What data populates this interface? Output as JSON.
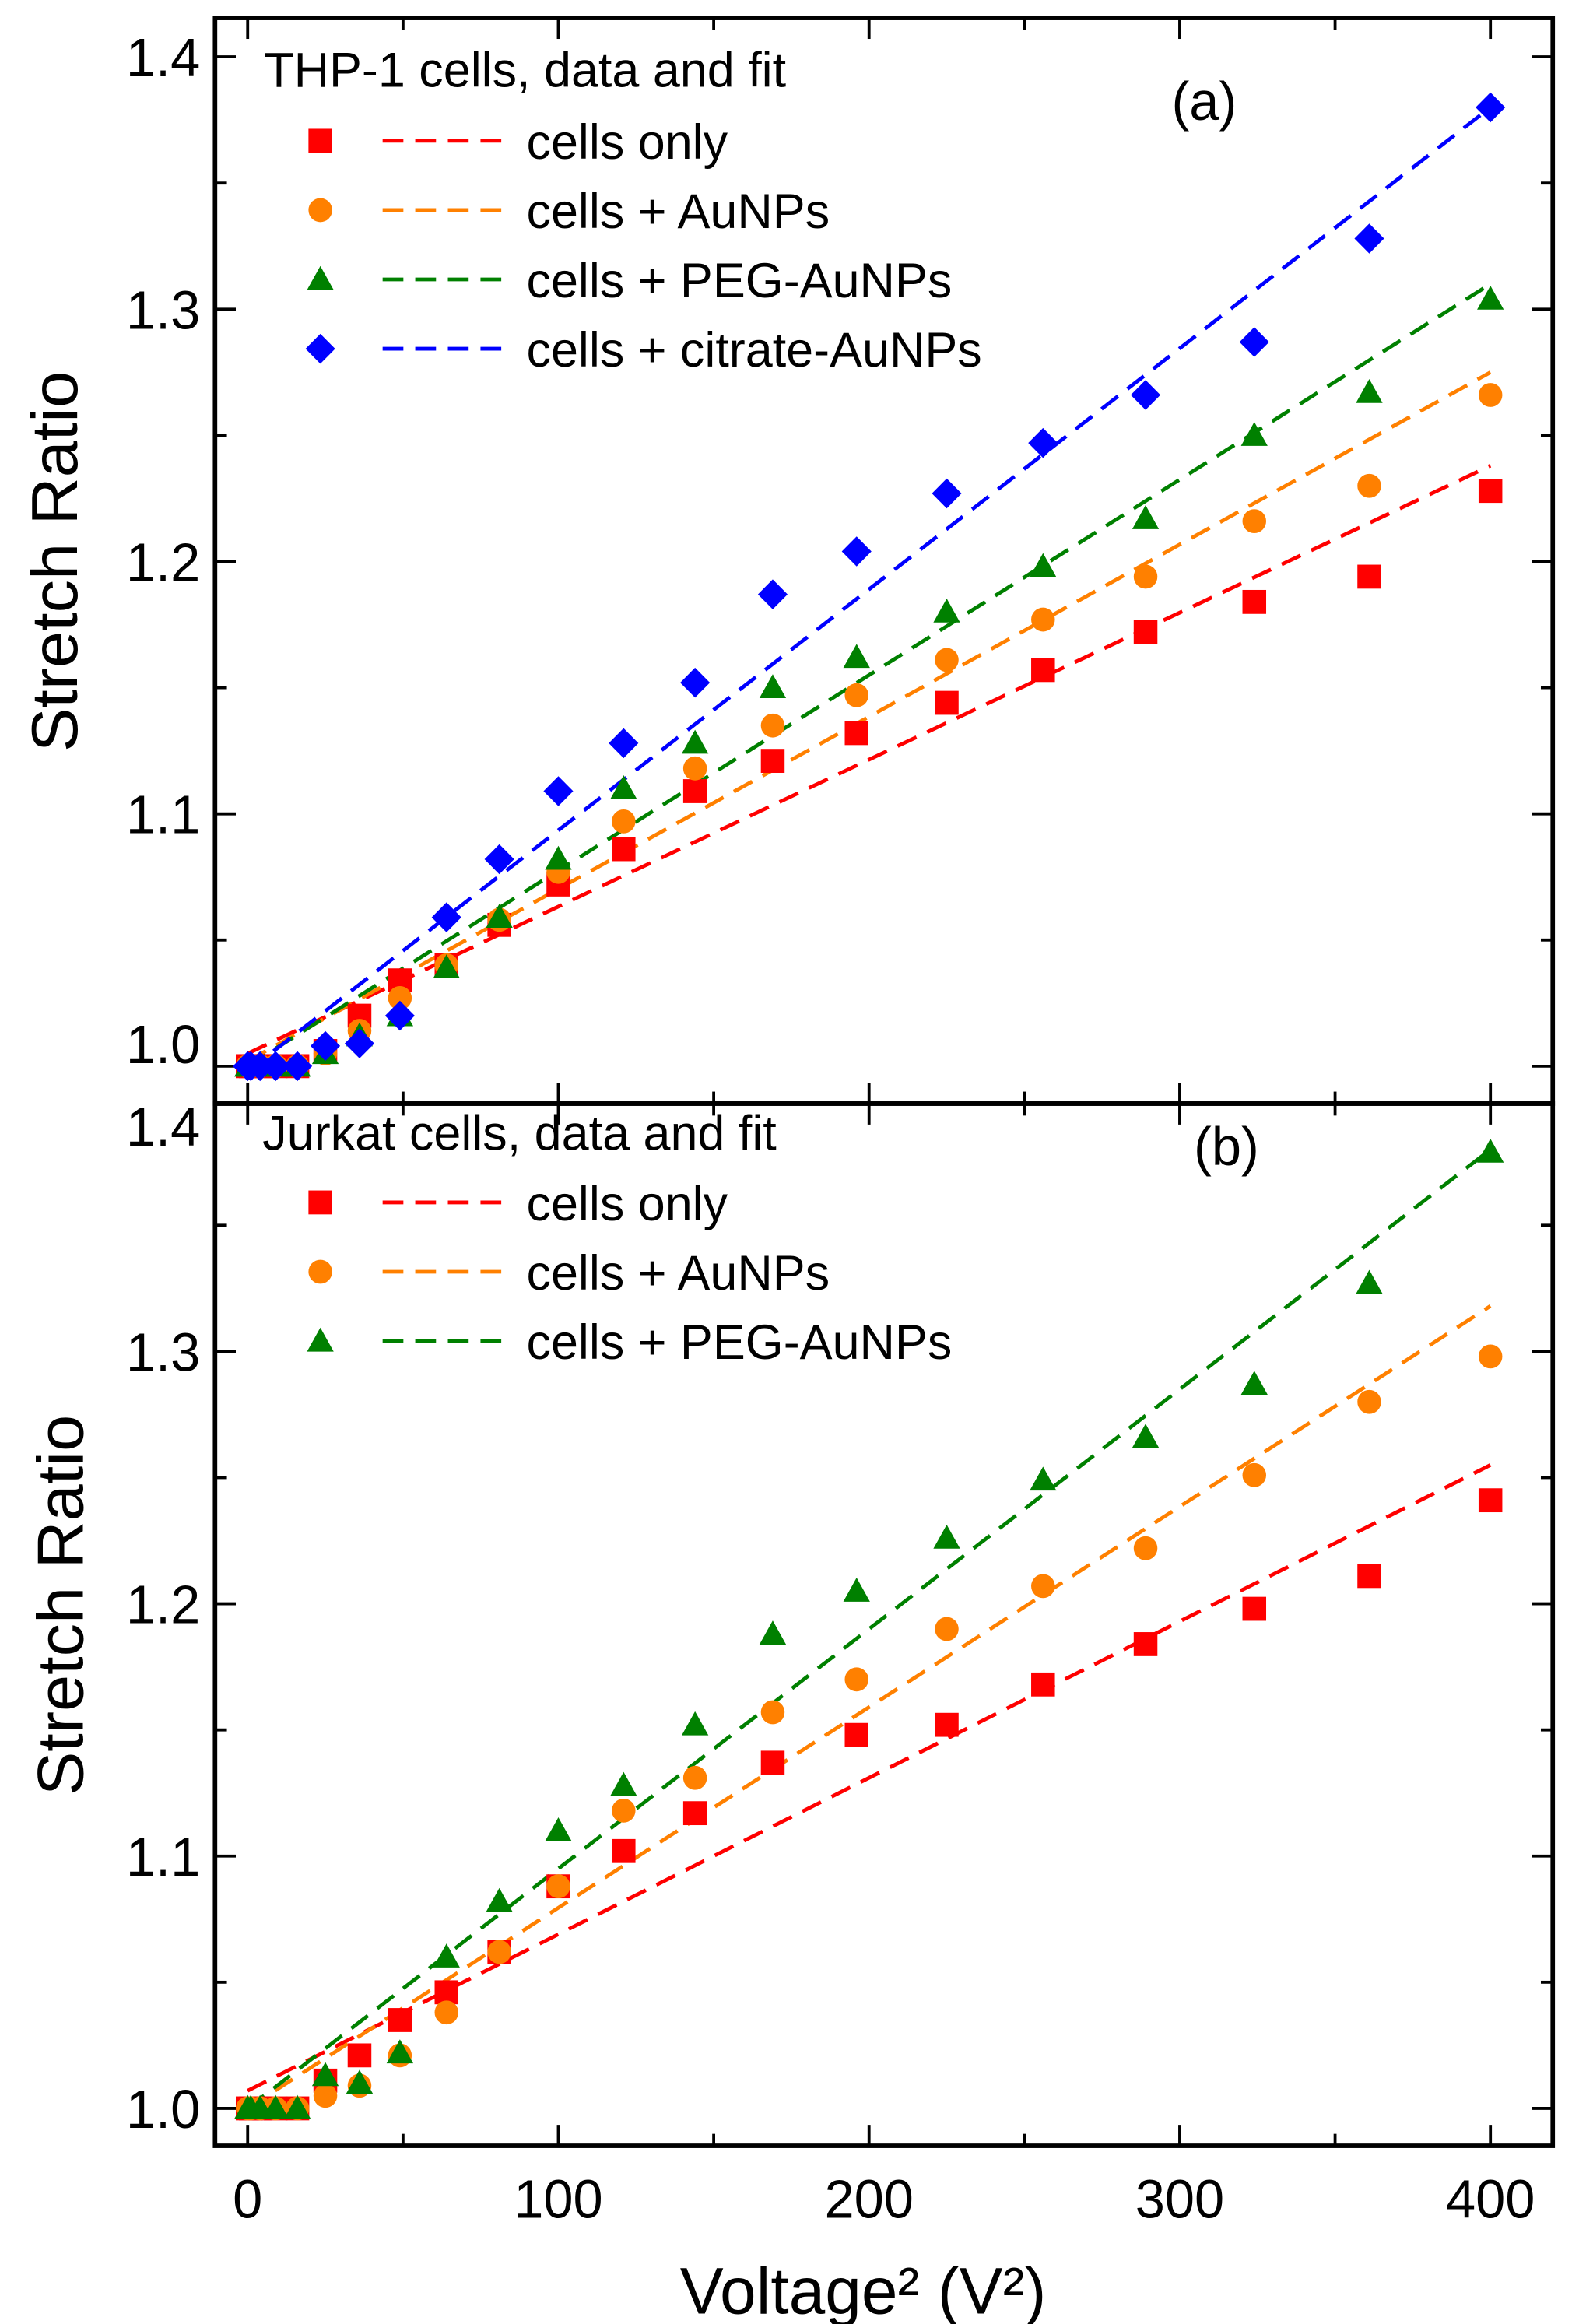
{
  "chart_data": [
    {
      "type": "scatter",
      "panel_label": "(a)",
      "legend_title": "THP-1 cells, data and fit",
      "xlabel": "Voltage² (V²)",
      "ylabel": "Stretch Ratio",
      "xlim": [
        -8,
        420
      ],
      "ylim": [
        0.985,
        1.415
      ],
      "xticks": [
        0,
        100,
        200,
        300,
        400
      ],
      "yticks": [
        "1.0",
        "1.1",
        "1.2",
        "1.3",
        "1.4"
      ],
      "x": [
        0,
        1,
        4,
        9,
        16,
        25,
        36,
        49,
        64,
        81,
        100,
        121,
        144,
        169,
        196,
        225,
        256,
        289,
        324,
        361,
        400
      ],
      "series": [
        {
          "name": "cells only",
          "color": "#ff0000",
          "marker": "square",
          "values": [
            1,
            1,
            1,
            1,
            1,
            1.006,
            1.02,
            1.034,
            1.04,
            1.056,
            1.072,
            1.086,
            1.109,
            1.121,
            1.132,
            1.144,
            1.157,
            1.172,
            1.184,
            1.194,
            1.228
          ],
          "fit": [
            1.005,
            1.238
          ]
        },
        {
          "name": "cells + AuNPs",
          "color": "#ff8000",
          "marker": "circle",
          "values": [
            1,
            1,
            1,
            1,
            1,
            1.005,
            1.014,
            1.027,
            1.04,
            1.058,
            1.077,
            1.097,
            1.118,
            1.135,
            1.147,
            1.161,
            1.177,
            1.194,
            1.216,
            1.23,
            1.266
          ],
          "fit": [
            1.002,
            1.275
          ]
        },
        {
          "name": "cells + PEG-AuNPs",
          "color": "#008000",
          "marker": "triangle",
          "values": [
            1,
            1,
            1,
            1,
            1,
            1.005,
            1.012,
            1.02,
            1.039,
            1.059,
            1.082,
            1.11,
            1.128,
            1.15,
            1.162,
            1.18,
            1.198,
            1.217,
            1.25,
            1.267,
            1.304
          ],
          "fit": [
            1.0,
            1.31
          ]
        },
        {
          "name": "cells + citrate-AuNPs",
          "color": "#0000ff",
          "marker": "diamond",
          "values": [
            1,
            1,
            1,
            1,
            1,
            1.008,
            1.009,
            1.02,
            1.059,
            1.082,
            1.109,
            1.128,
            1.152,
            1.187,
            1.204,
            1.227,
            1.247,
            1.266,
            1.287,
            1.328,
            1.38
          ],
          "fit": [
            0.998,
            1.38
          ]
        }
      ]
    },
    {
      "type": "scatter",
      "panel_label": "(b)",
      "legend_title": "Jurkat cells, data and fit",
      "xlabel": "Voltage² (V²)",
      "ylabel": "Stretch Ratio",
      "xlim": [
        -8,
        420
      ],
      "ylim": [
        0.985,
        1.399
      ],
      "xticks": [
        0,
        100,
        200,
        300,
        400
      ],
      "yticks": [
        "1.0",
        "1.1",
        "1.2",
        "1.3",
        "1.4"
      ],
      "x": [
        0,
        1,
        4,
        9,
        16,
        25,
        36,
        49,
        64,
        81,
        100,
        121,
        144,
        169,
        196,
        225,
        256,
        289,
        324,
        361,
        400
      ],
      "series": [
        {
          "name": "cells only",
          "color": "#ff0000",
          "marker": "square",
          "values": [
            1,
            1,
            1,
            1,
            1,
            1.011,
            1.021,
            1.035,
            1.046,
            1.062,
            1.088,
            1.102,
            1.117,
            1.137,
            1.148,
            1.152,
            1.168,
            1.184,
            1.198,
            1.211,
            1.241
          ],
          "fit": [
            1.007,
            1.255
          ]
        },
        {
          "name": "cells + AuNPs",
          "color": "#ff8000",
          "marker": "circle",
          "values": [
            1,
            1,
            1,
            1,
            1,
            1.005,
            1.009,
            1.021,
            1.038,
            1.062,
            1.088,
            1.118,
            1.131,
            1.157,
            1.17,
            1.19,
            1.207,
            1.222,
            1.251,
            1.28,
            1.298
          ],
          "fit": [
            1.0,
            1.318
          ]
        },
        {
          "name": "cells + PEG-AuNPs",
          "color": "#008000",
          "marker": "triangle",
          "values": [
            1,
            1,
            1,
            1,
            1,
            1.013,
            1.01,
            1.022,
            1.06,
            1.082,
            1.11,
            1.128,
            1.152,
            1.188,
            1.205,
            1.226,
            1.249,
            1.266,
            1.287,
            1.327,
            1.379
          ],
          "fit": [
            1.0,
            1.38
          ]
        }
      ]
    }
  ]
}
